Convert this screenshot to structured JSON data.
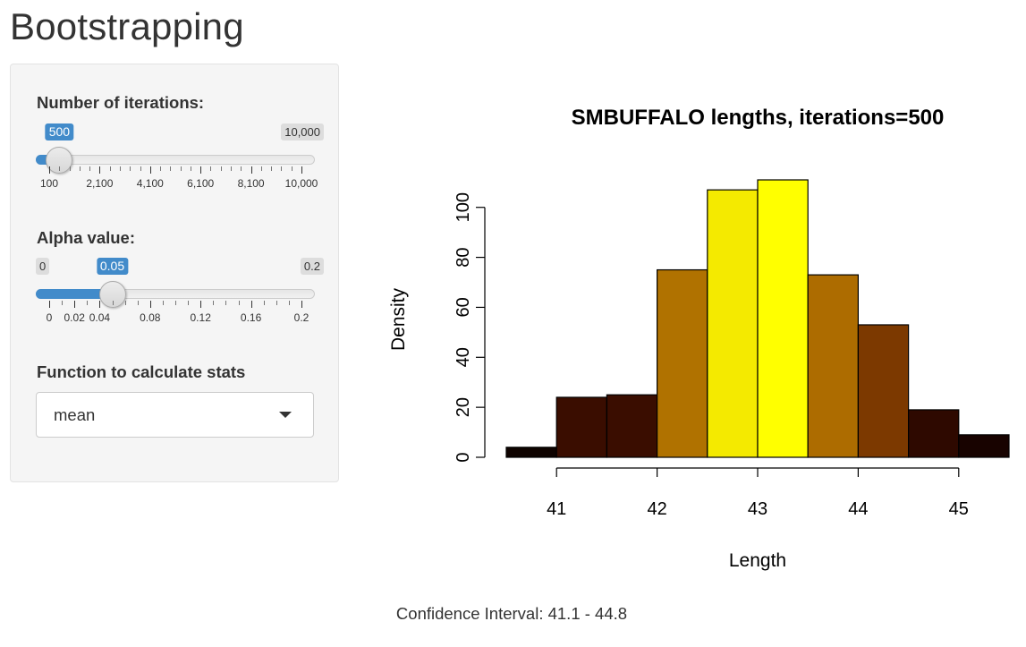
{
  "app": {
    "title": "Bootstrapping"
  },
  "sidebar": {
    "iterations": {
      "label": "Number of iterations:",
      "min": 100,
      "max": 10000,
      "value": 500,
      "value_label": "500",
      "min_label": "",
      "max_label": "10,000",
      "tick_labels": [
        "100",
        "2,100",
        "4,100",
        "6,100",
        "8,100",
        "10,000"
      ]
    },
    "alpha": {
      "label": "Alpha value:",
      "min": 0,
      "max": 0.2,
      "value": 0.05,
      "value_label": "0.05",
      "min_label": "0",
      "max_label": "0.2",
      "tick_labels": [
        "0",
        "0.02",
        "0.04",
        "0.08",
        "0.12",
        "0.16",
        "0.2"
      ]
    },
    "stat_function": {
      "label": "Function to calculate stats",
      "selected": "mean"
    }
  },
  "chart_data": {
    "type": "bar",
    "title": "SMBUFFALO lengths, iterations=500",
    "xlabel": "Length",
    "ylabel": "Density",
    "bin_width": 0.5,
    "bins": [
      {
        "start": 40.5,
        "end": 41.0,
        "value": 4,
        "color": "#0f0300"
      },
      {
        "start": 41.0,
        "end": 41.5,
        "value": 24,
        "color": "#3a0d00"
      },
      {
        "start": 41.5,
        "end": 42.0,
        "value": 25,
        "color": "#3a0d00"
      },
      {
        "start": 42.0,
        "end": 42.5,
        "value": 75,
        "color": "#b07200"
      },
      {
        "start": 42.5,
        "end": 43.0,
        "value": 107,
        "color": "#f4ea00"
      },
      {
        "start": 43.0,
        "end": 43.5,
        "value": 111,
        "color": "#ffff00"
      },
      {
        "start": 43.5,
        "end": 44.0,
        "value": 73,
        "color": "#ad6c00"
      },
      {
        "start": 44.0,
        "end": 44.5,
        "value": 53,
        "color": "#7c3900"
      },
      {
        "start": 44.5,
        "end": 45.0,
        "value": 19,
        "color": "#2e0900"
      },
      {
        "start": 45.0,
        "end": 45.5,
        "value": 9,
        "color": "#180300"
      }
    ],
    "xlim": [
      40.5,
      45.5
    ],
    "ylim": [
      0,
      111
    ],
    "xticks": [
      41,
      42,
      43,
      44,
      45
    ],
    "yticks": [
      0,
      20,
      40,
      60,
      80,
      100
    ],
    "grid": false
  },
  "result": {
    "confidence_interval": "Confidence Interval: 41.1 - 44.8"
  }
}
